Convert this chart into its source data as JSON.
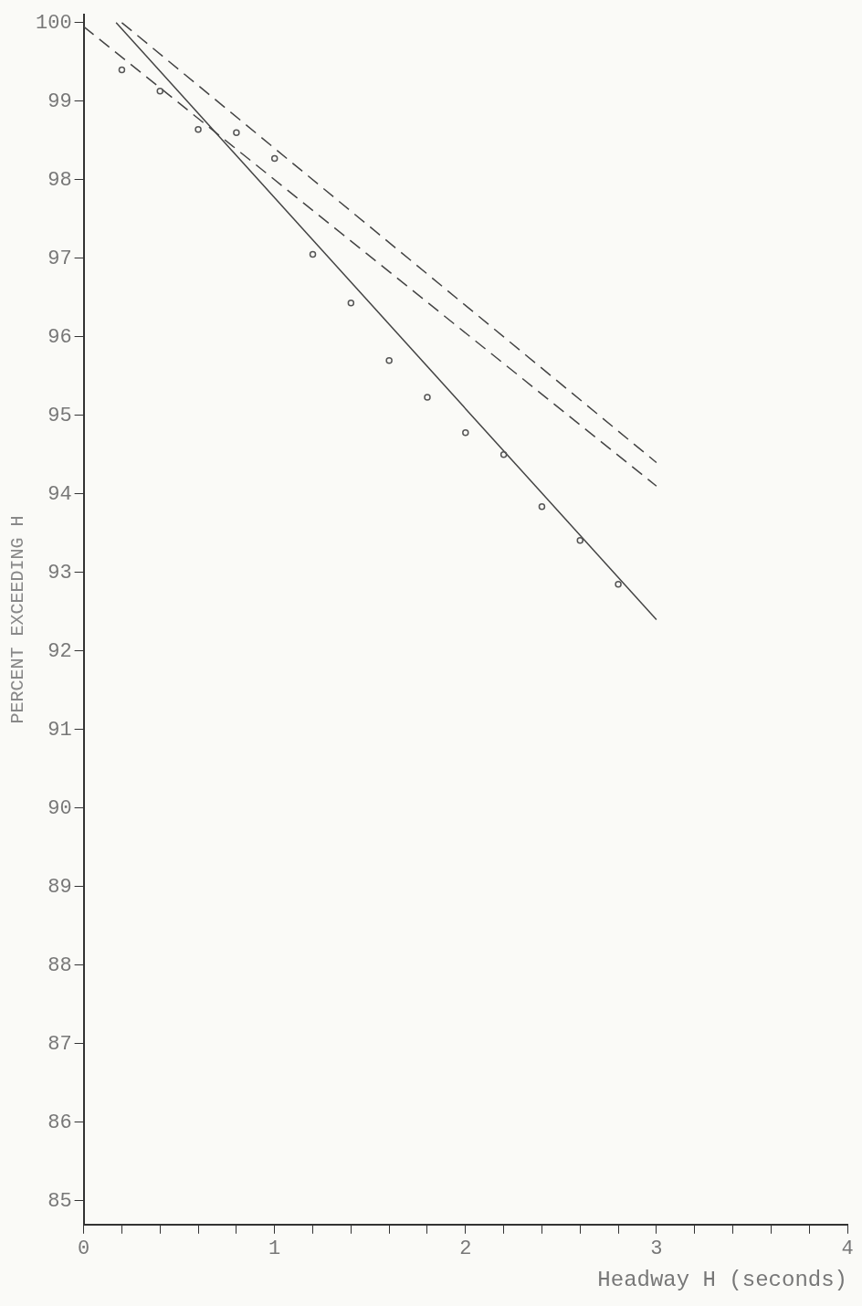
{
  "chart_data": {
    "type": "scatter",
    "xlabel": "Headway H (seconds)",
    "ylabel": "PERCENT EXCEEDING H",
    "xlim": [
      0,
      4
    ],
    "ylim": [
      84.7,
      100.1
    ],
    "xticks": [
      0,
      {
        "value": 0.2,
        "label": null
      },
      {
        "value": 0.4,
        "label": null
      },
      {
        "value": 0.6,
        "label": null
      },
      {
        "value": 0.8,
        "label": null
      },
      1,
      {
        "value": 1.2,
        "label": null
      },
      {
        "value": 1.4,
        "label": null
      },
      {
        "value": 1.6,
        "label": null
      },
      {
        "value": 1.8,
        "label": null
      },
      2,
      {
        "value": 2.2,
        "label": null
      },
      {
        "value": 2.4,
        "label": null
      },
      {
        "value": 2.6,
        "label": null
      },
      {
        "value": 2.8,
        "label": null
      },
      3,
      {
        "value": 3.2,
        "label": null
      },
      {
        "value": 3.4,
        "label": null
      },
      {
        "value": 3.6,
        "label": null
      },
      {
        "value": 3.8,
        "label": null
      },
      4
    ],
    "yticks": [
      85,
      86,
      87,
      88,
      89,
      90,
      91,
      92,
      93,
      94,
      95,
      96,
      97,
      98,
      99,
      100
    ],
    "grid": false,
    "legend": false,
    "series": [
      {
        "type": "scatter",
        "marker": "circle",
        "color": "#555555",
        "x": [
          0.2,
          0.4,
          0.6,
          0.8,
          1.0,
          1.2,
          1.4,
          1.6,
          1.8,
          2.0,
          2.2,
          2.4,
          2.6,
          2.8
        ],
        "values": [
          99.4,
          99.13,
          98.64,
          98.6,
          98.27,
          97.05,
          96.43,
          95.7,
          95.23,
          94.78,
          94.5,
          93.84,
          93.41,
          92.85
        ]
      },
      {
        "type": "line",
        "marker": "none",
        "line_style": "solid",
        "color": "#444444",
        "x": [
          0.17,
          3.0
        ],
        "values": [
          100,
          92.4
        ]
      },
      {
        "type": "line",
        "marker": "none",
        "line_style": "dashed",
        "color": "#444444",
        "x": [
          0,
          3.0
        ],
        "values": [
          99.95,
          94.1
        ]
      },
      {
        "type": "line",
        "marker": "none",
        "line_style": "dashed",
        "color": "#444444",
        "x": [
          0.2,
          3.0
        ],
        "values": [
          100,
          94.4
        ]
      }
    ]
  }
}
